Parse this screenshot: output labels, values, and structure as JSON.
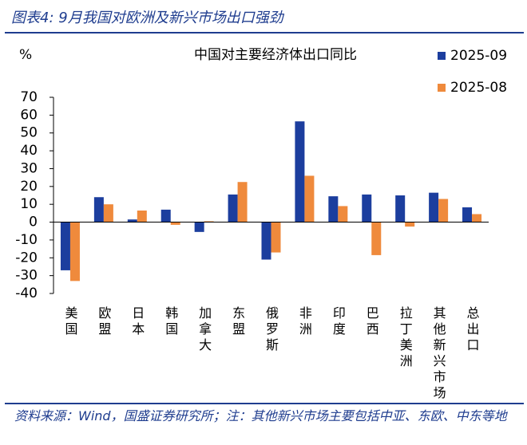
{
  "header": {
    "title": "图表4:  9月我国对欧洲及新兴市场出口强劲"
  },
  "chart_data": {
    "type": "bar",
    "title": "中国对主要经济体出口同比",
    "y_label": "%",
    "categories": [
      "美国",
      "欧盟",
      "日本",
      "韩国",
      "加拿大",
      "东盟",
      "俄罗斯",
      "非洲",
      "印度",
      "巴西",
      "拉丁美洲",
      "其他新兴市场",
      "总出口"
    ],
    "series": [
      {
        "name": "2025-09",
        "color": "#1c3e9e",
        "values": [
          -27,
          14,
          1.5,
          7,
          -5.5,
          15.5,
          -21,
          56.5,
          14.5,
          15.5,
          15,
          16.5,
          8.3
        ]
      },
      {
        "name": "2025-08",
        "color": "#ef8a3c",
        "values": [
          -33,
          10,
          6.5,
          -1.5,
          0.5,
          22.5,
          -17,
          26,
          9,
          -18.5,
          -2.5,
          13,
          4.5
        ]
      }
    ],
    "ylim": [
      -40,
      70
    ],
    "yticks": [
      -40,
      -30,
      -20,
      -10,
      0,
      10,
      20,
      30,
      40,
      50,
      60,
      70
    ],
    "legend": "right"
  },
  "footer": {
    "source": "资料来源：Wind，国盛证券研究所；注：其他新兴市场主要包括中亚、东欧、中东等地"
  }
}
